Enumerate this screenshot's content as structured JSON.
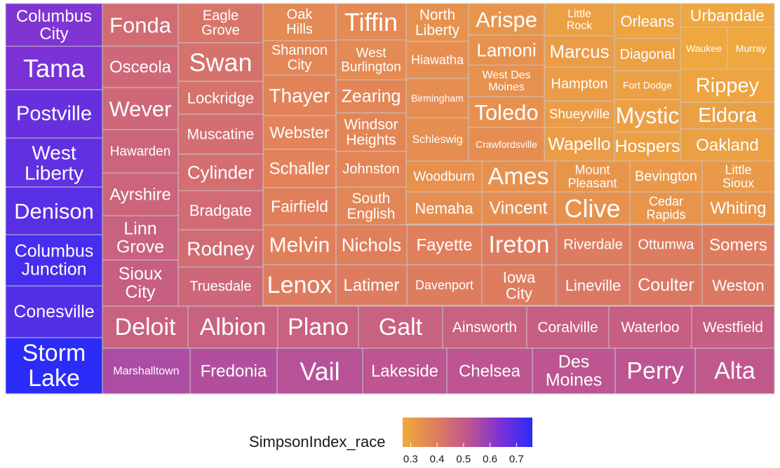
{
  "chart_data": {
    "type": "treemap",
    "value_field": "SimpsonIndex_race",
    "color_scale": {
      "range": [
        0.27,
        0.76
      ],
      "stops": [
        "#f0ab3c",
        "#e07e5d",
        "#c0568e",
        "#7c32d6",
        "#2b2cf8"
      ]
    },
    "legend": {
      "title": "SimpsonIndex_race",
      "ticks": [
        0.3,
        0.4,
        0.5,
        0.6,
        0.7
      ],
      "position": "bottom"
    },
    "tiles": [
      {
        "name": "Columbus City",
        "v": 0.63
      },
      {
        "name": "Tama",
        "v": 0.64
      },
      {
        "name": "Postville",
        "v": 0.67
      },
      {
        "name": "West Liberty",
        "v": 0.68
      },
      {
        "name": "Denison",
        "v": 0.69
      },
      {
        "name": "Columbus Junction",
        "v": 0.72
      },
      {
        "name": "Conesville",
        "v": 0.7
      },
      {
        "name": "Storm Lake",
        "v": 0.76
      },
      {
        "name": "Fonda",
        "v": 0.45
      },
      {
        "name": "Osceola",
        "v": 0.46
      },
      {
        "name": "Wever",
        "v": 0.46
      },
      {
        "name": "Hawarden",
        "v": 0.47
      },
      {
        "name": "Ayrshire",
        "v": 0.47
      },
      {
        "name": "Linn Grove",
        "v": 0.48
      },
      {
        "name": "Sioux City",
        "v": 0.49
      },
      {
        "name": "Eagle Grove",
        "v": 0.42
      },
      {
        "name": "Swan",
        "v": 0.43
      },
      {
        "name": "Lockridge",
        "v": 0.43
      },
      {
        "name": "Muscatine",
        "v": 0.44
      },
      {
        "name": "Cylinder",
        "v": 0.44
      },
      {
        "name": "Bradgate",
        "v": 0.45
      },
      {
        "name": "Rodney",
        "v": 0.45
      },
      {
        "name": "Truesdale",
        "v": 0.46
      },
      {
        "name": "Oak Hills",
        "v": 0.36
      },
      {
        "name": "Shannon City",
        "v": 0.37
      },
      {
        "name": "Thayer",
        "v": 0.38
      },
      {
        "name": "Webster",
        "v": 0.38
      },
      {
        "name": "Schaller",
        "v": 0.38
      },
      {
        "name": "Fairfield",
        "v": 0.39
      },
      {
        "name": "Tiffin",
        "v": 0.36
      },
      {
        "name": "West Burlington",
        "v": 0.36
      },
      {
        "name": "Zearing",
        "v": 0.37
      },
      {
        "name": "Windsor Heights",
        "v": 0.37
      },
      {
        "name": "Johnston",
        "v": 0.37
      },
      {
        "name": "South English",
        "v": 0.37
      },
      {
        "name": "North Liberty",
        "v": 0.34
      },
      {
        "name": "Hiawatha",
        "v": 0.35
      },
      {
        "name": "Birmingham",
        "v": 0.35
      },
      {
        "name": "Schleswig",
        "v": 0.35
      },
      {
        "name": "Arispe",
        "v": 0.33
      },
      {
        "name": "Lamoni",
        "v": 0.34
      },
      {
        "name": "West Des Moines",
        "v": 0.34
      },
      {
        "name": "Toledo",
        "v": 0.34
      },
      {
        "name": "Crawfordsville",
        "v": 0.35
      },
      {
        "name": "Little Rock",
        "v": 0.3
      },
      {
        "name": "Marcus",
        "v": 0.31
      },
      {
        "name": "Hampton",
        "v": 0.31
      },
      {
        "name": "Shueyville",
        "v": 0.31
      },
      {
        "name": "Wapello",
        "v": 0.31
      },
      {
        "name": "Orleans",
        "v": 0.29
      },
      {
        "name": "Diagonal",
        "v": 0.3
      },
      {
        "name": "Fort Dodge",
        "v": 0.3
      },
      {
        "name": "Mystic",
        "v": 0.3
      },
      {
        "name": "Hospers",
        "v": 0.3
      },
      {
        "name": "Urbandale",
        "v": 0.28
      },
      {
        "name": "Waukee",
        "v": 0.28
      },
      {
        "name": "Murray",
        "v": 0.28
      },
      {
        "name": "Rippey",
        "v": 0.29
      },
      {
        "name": "Eldora",
        "v": 0.3
      },
      {
        "name": "Oakland",
        "v": 0.3
      },
      {
        "name": "Woodburn",
        "v": 0.34
      },
      {
        "name": "Ames",
        "v": 0.34
      },
      {
        "name": "Mount Pleasant",
        "v": 0.33
      },
      {
        "name": "Bevington",
        "v": 0.32
      },
      {
        "name": "Little Sioux",
        "v": 0.32
      },
      {
        "name": "Nemaha",
        "v": 0.35
      },
      {
        "name": "Vincent",
        "v": 0.35
      },
      {
        "name": "Clive",
        "v": 0.34
      },
      {
        "name": "Cedar Rapids",
        "v": 0.33
      },
      {
        "name": "Whiting",
        "v": 0.33
      },
      {
        "name": "Melvin",
        "v": 0.39
      },
      {
        "name": "Nichols",
        "v": 0.39
      },
      {
        "name": "Fayette",
        "v": 0.39
      },
      {
        "name": "Ireton",
        "v": 0.4
      },
      {
        "name": "Riverdale",
        "v": 0.4
      },
      {
        "name": "Ottumwa",
        "v": 0.4
      },
      {
        "name": "Somers",
        "v": 0.4
      },
      {
        "name": "Lenox",
        "v": 0.4
      },
      {
        "name": "Latimer",
        "v": 0.4
      },
      {
        "name": "Davenport",
        "v": 0.4
      },
      {
        "name": "Iowa City",
        "v": 0.4
      },
      {
        "name": "Lineville",
        "v": 0.41
      },
      {
        "name": "Coulter",
        "v": 0.41
      },
      {
        "name": "Weston",
        "v": 0.41
      },
      {
        "name": "Deloit",
        "v": 0.48
      },
      {
        "name": "Albion",
        "v": 0.48
      },
      {
        "name": "Plano",
        "v": 0.48
      },
      {
        "name": "Galt",
        "v": 0.48
      },
      {
        "name": "Ainsworth",
        "v": 0.48
      },
      {
        "name": "Coralville",
        "v": 0.49
      },
      {
        "name": "Waterloo",
        "v": 0.49
      },
      {
        "name": "Westfield",
        "v": 0.49
      },
      {
        "name": "Marshalltown",
        "v": 0.55
      },
      {
        "name": "Fredonia",
        "v": 0.54
      },
      {
        "name": "Vail",
        "v": 0.53
      },
      {
        "name": "Lakeside",
        "v": 0.52
      },
      {
        "name": "Chelsea",
        "v": 0.52
      },
      {
        "name": "Des Moines",
        "v": 0.52
      },
      {
        "name": "Perry",
        "v": 0.52
      },
      {
        "name": "Alta",
        "v": 0.51
      }
    ]
  }
}
